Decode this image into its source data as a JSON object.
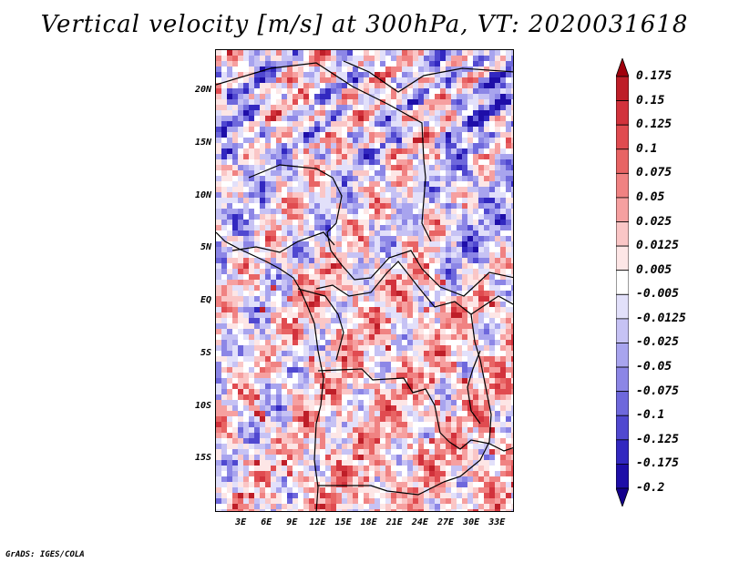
{
  "title": "Vertical velocity [m/s] at 300hPa, VT: 2020031618",
  "map": {
    "lat_range": [
      -20,
      24
    ],
    "lon_range": [
      0,
      35
    ],
    "lat_ticks": [
      {
        "value": 20,
        "label": "20N"
      },
      {
        "value": 15,
        "label": "15N"
      },
      {
        "value": 10,
        "label": "10N"
      },
      {
        "value": 5,
        "label": "5N"
      },
      {
        "value": 0,
        "label": "EQ"
      },
      {
        "value": -5,
        "label": "5S"
      },
      {
        "value": -10,
        "label": "10S"
      },
      {
        "value": -15,
        "label": "15S"
      }
    ],
    "lon_ticks": [
      {
        "value": 3,
        "label": "3E"
      },
      {
        "value": 6,
        "label": "6E"
      },
      {
        "value": 9,
        "label": "9E"
      },
      {
        "value": 12,
        "label": "12E"
      },
      {
        "value": 15,
        "label": "15E"
      },
      {
        "value": 18,
        "label": "18E"
      },
      {
        "value": 21,
        "label": "21E"
      },
      {
        "value": 24,
        "label": "24E"
      },
      {
        "value": 27,
        "label": "27E"
      },
      {
        "value": 30,
        "label": "30E"
      },
      {
        "value": 33,
        "label": "33E"
      }
    ]
  },
  "colorbar": {
    "labels": [
      "0.175",
      "0.15",
      "0.125",
      "0.1",
      "0.075",
      "0.05",
      "0.025",
      "0.0125",
      "0.005",
      "-0.005",
      "-0.0125",
      "-0.025",
      "-0.05",
      "-0.075",
      "-0.1",
      "-0.125",
      "-0.175",
      "-0.2"
    ],
    "colors": [
      "#a0000c",
      "#be1e28",
      "#d2323c",
      "#e04b50",
      "#e86464",
      "#f08282",
      "#f6a0a0",
      "#fac6c6",
      "#fde6e6",
      "#ffffff",
      "#e2e0fa",
      "#c6c2f4",
      "#a8a4ee",
      "#8c86e6",
      "#6e68dc",
      "#5048d0",
      "#3228c0",
      "#1e0ea8",
      "#14008c"
    ]
  },
  "credit": "GrADS: IGES/COLA"
}
